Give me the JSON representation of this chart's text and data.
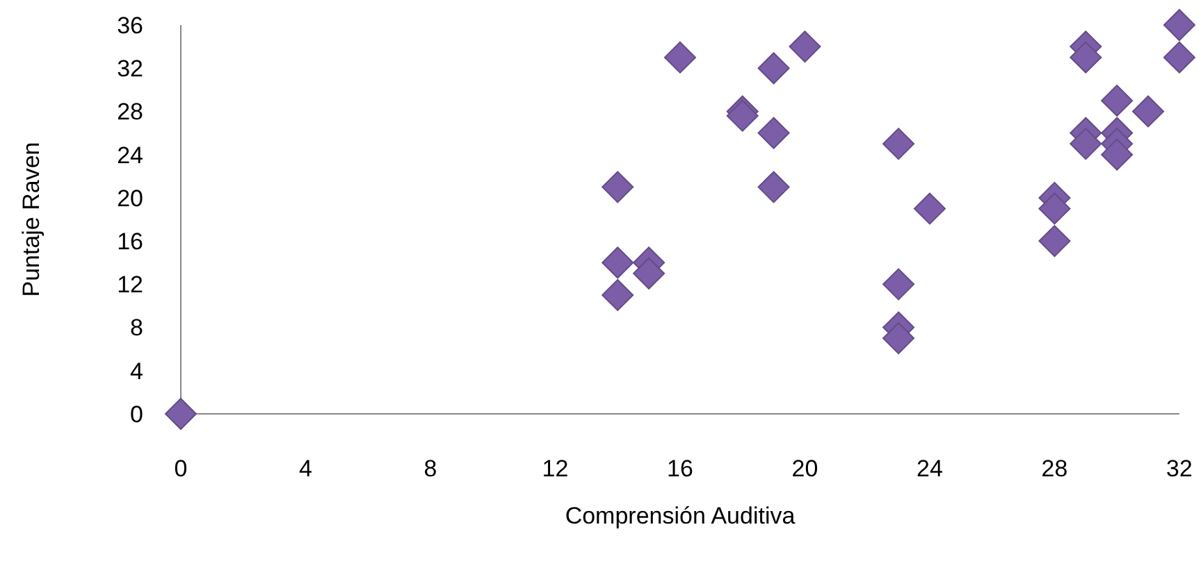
{
  "chart_data": {
    "type": "scatter",
    "xlabel": "Comprensión Auditiva",
    "ylabel": "Puntaje Raven",
    "marker": "diamond",
    "grid": false,
    "xlim": [
      0,
      32
    ],
    "ylim": [
      0,
      36
    ],
    "xticks": [
      0,
      4,
      8,
      12,
      16,
      20,
      24,
      28,
      32
    ],
    "yticks": [
      0,
      4,
      8,
      12,
      16,
      20,
      24,
      28,
      32,
      36
    ],
    "series": [
      {
        "color": "#7b5ea7",
        "x": [
          0,
          14,
          14,
          14,
          15,
          15,
          16,
          18,
          18,
          19,
          19,
          19,
          20,
          23,
          23,
          23,
          23,
          24,
          28,
          28,
          28,
          29,
          29,
          29,
          29,
          30,
          30,
          30,
          30,
          31,
          32,
          32
        ],
        "values": [
          0,
          21,
          14,
          11,
          14,
          13,
          33,
          28,
          27.6,
          32,
          26,
          21,
          34,
          25,
          12,
          8,
          7,
          19,
          20,
          19,
          16,
          34,
          33,
          26,
          25,
          29,
          26,
          25,
          24,
          28,
          36,
          33
        ]
      }
    ]
  }
}
